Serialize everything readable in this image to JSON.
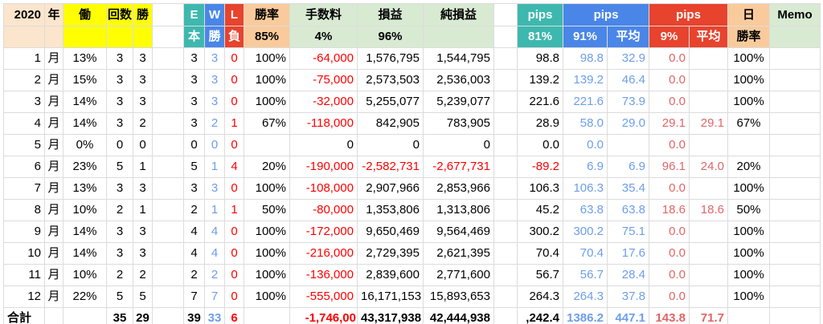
{
  "header": {
    "year": "2020",
    "year_unit": "年",
    "work": "働",
    "count": "回数",
    "win": "勝",
    "e_top": "E",
    "e_bottom": "本",
    "w_top": "W",
    "w_bottom": "勝",
    "l_top": "L",
    "l_bottom": "負",
    "win_rate": "勝率",
    "win_rate_pct": "85%",
    "fee": "手数料",
    "fee_pct": "4%",
    "profit": "損益",
    "profit_pct": "96%",
    "net_profit": "純損益",
    "pips_e": "pips",
    "pips_e_pct": "81%",
    "pips_w": "pips",
    "pips_w_pct": "91%",
    "pips_w_avg": "平均",
    "pips_l": "pips",
    "pips_l_pct": "9%",
    "pips_l_avg": "平均",
    "day": "日",
    "day_rate": "勝率",
    "memo": "Memo"
  },
  "rows": [
    {
      "month": "1",
      "unit": "月",
      "work": "13%",
      "count": "3",
      "win": "3",
      "e": "3",
      "w": "3",
      "l": "0",
      "rate": "100%",
      "fee": "-64,000",
      "profit": "1,576,795",
      "net": "1,544,795",
      "pips_e": "98.8",
      "pips_w": "98.8",
      "pips_w_avg": "32.9",
      "pips_l": "0.0",
      "pips_l_avg": "",
      "day_rate": "100%",
      "memo": ""
    },
    {
      "month": "2",
      "unit": "月",
      "work": "15%",
      "count": "3",
      "win": "3",
      "e": "3",
      "w": "3",
      "l": "0",
      "rate": "100%",
      "fee": "-75,000",
      "profit": "2,573,503",
      "net": "2,536,003",
      "pips_e": "139.2",
      "pips_w": "139.2",
      "pips_w_avg": "46.4",
      "pips_l": "0.0",
      "pips_l_avg": "",
      "day_rate": "100%",
      "memo": ""
    },
    {
      "month": "3",
      "unit": "月",
      "work": "14%",
      "count": "3",
      "win": "3",
      "e": "3",
      "w": "3",
      "l": "0",
      "rate": "100%",
      "fee": "-32,000",
      "profit": "5,255,077",
      "net": "5,239,077",
      "pips_e": "221.6",
      "pips_w": "221.6",
      "pips_w_avg": "73.9",
      "pips_l": "0.0",
      "pips_l_avg": "",
      "day_rate": "100%",
      "memo": ""
    },
    {
      "month": "4",
      "unit": "月",
      "work": "14%",
      "count": "3",
      "win": "2",
      "e": "3",
      "w": "2",
      "l": "1",
      "rate": "67%",
      "fee": "-118,000",
      "profit": "842,905",
      "net": "783,905",
      "pips_e": "28.9",
      "pips_w": "58.0",
      "pips_w_avg": "29.0",
      "pips_l": "29.1",
      "pips_l_avg": "29.1",
      "day_rate": "67%",
      "memo": ""
    },
    {
      "month": "5",
      "unit": "月",
      "work": "0%",
      "count": "0",
      "win": "0",
      "e": "0",
      "w": "0",
      "l": "0",
      "rate": "",
      "fee": "0",
      "profit": "0",
      "net": "0",
      "pips_e": "0.0",
      "pips_w": "0.0",
      "pips_w_avg": "",
      "pips_l": "0.0",
      "pips_l_avg": "",
      "day_rate": "",
      "memo": ""
    },
    {
      "month": "6",
      "unit": "月",
      "work": "23%",
      "count": "5",
      "win": "1",
      "e": "5",
      "w": "1",
      "l": "4",
      "rate": "20%",
      "fee": "-190,000",
      "profit": "-2,582,731",
      "net": "-2,677,731",
      "pips_e": "-89.2",
      "pips_w": "6.9",
      "pips_w_avg": "6.9",
      "pips_l": "96.1",
      "pips_l_avg": "24.0",
      "day_rate": "20%",
      "memo": ""
    },
    {
      "month": "7",
      "unit": "月",
      "work": "13%",
      "count": "3",
      "win": "3",
      "e": "3",
      "w": "3",
      "l": "0",
      "rate": "100%",
      "fee": "-108,000",
      "profit": "2,907,966",
      "net": "2,853,966",
      "pips_e": "106.3",
      "pips_w": "106.3",
      "pips_w_avg": "35.4",
      "pips_l": "0.0",
      "pips_l_avg": "",
      "day_rate": "100%",
      "memo": ""
    },
    {
      "month": "8",
      "unit": "月",
      "work": "10%",
      "count": "2",
      "win": "1",
      "e": "2",
      "w": "1",
      "l": "1",
      "rate": "50%",
      "fee": "-80,000",
      "profit": "1,353,806",
      "net": "1,313,806",
      "pips_e": "45.2",
      "pips_w": "63.8",
      "pips_w_avg": "63.8",
      "pips_l": "18.6",
      "pips_l_avg": "18.6",
      "day_rate": "50%",
      "memo": ""
    },
    {
      "month": "9",
      "unit": "月",
      "work": "14%",
      "count": "3",
      "win": "3",
      "e": "4",
      "w": "4",
      "l": "0",
      "rate": "100%",
      "fee": "-172,000",
      "profit": "9,650,469",
      "net": "9,564,469",
      "pips_e": "300.2",
      "pips_w": "300.2",
      "pips_w_avg": "75.1",
      "pips_l": "0.0",
      "pips_l_avg": "",
      "day_rate": "100%",
      "memo": ""
    },
    {
      "month": "10",
      "unit": "月",
      "work": "14%",
      "count": "3",
      "win": "3",
      "e": "4",
      "w": "4",
      "l": "0",
      "rate": "100%",
      "fee": "-216,000",
      "profit": "2,729,395",
      "net": "2,621,395",
      "pips_e": "70.4",
      "pips_w": "70.4",
      "pips_w_avg": "17.6",
      "pips_l": "0.0",
      "pips_l_avg": "",
      "day_rate": "100%",
      "memo": ""
    },
    {
      "month": "11",
      "unit": "月",
      "work": "10%",
      "count": "2",
      "win": "2",
      "e": "2",
      "w": "2",
      "l": "0",
      "rate": "100%",
      "fee": "-136,000",
      "profit": "2,839,600",
      "net": "2,771,600",
      "pips_e": "56.7",
      "pips_w": "56.7",
      "pips_w_avg": "28.4",
      "pips_l": "0.0",
      "pips_l_avg": "",
      "day_rate": "100%",
      "memo": ""
    },
    {
      "month": "12",
      "unit": "月",
      "work": "22%",
      "count": "5",
      "win": "5",
      "e": "7",
      "w": "7",
      "l": "0",
      "rate": "100%",
      "fee": "-555,000",
      "profit": "16,171,153",
      "net": "15,893,653",
      "pips_e": "264.3",
      "pips_w": "264.3",
      "pips_w_avg": "37.8",
      "pips_l": "0.0",
      "pips_l_avg": "",
      "day_rate": "100%",
      "memo": ""
    }
  ],
  "total": {
    "label": "合計",
    "unit": "",
    "work": "",
    "count": "35",
    "win": "29",
    "e": "39",
    "w": "33",
    "l": "6",
    "rate": "",
    "fee": "-1,746,00",
    "profit": "43,317,938",
    "net": "42,444,938",
    "pips_e": ",242.4",
    "pips_w": "1386.2",
    "pips_w_avg": "447.1",
    "pips_l": "143.8",
    "pips_l_avg": "71.7",
    "day_rate": "",
    "memo": ""
  },
  "colors": {
    "yellow": "#ffff00",
    "teal": "#3eb8ae",
    "blue": "#4a86e8",
    "red": "#e8432d",
    "tan": "#f9cb9c",
    "beige": "#fce5cd",
    "green": "#d9ead3",
    "text_blue": "#6d9eeb",
    "text_red": "#ff0000",
    "soft_red": "#e06666"
  }
}
